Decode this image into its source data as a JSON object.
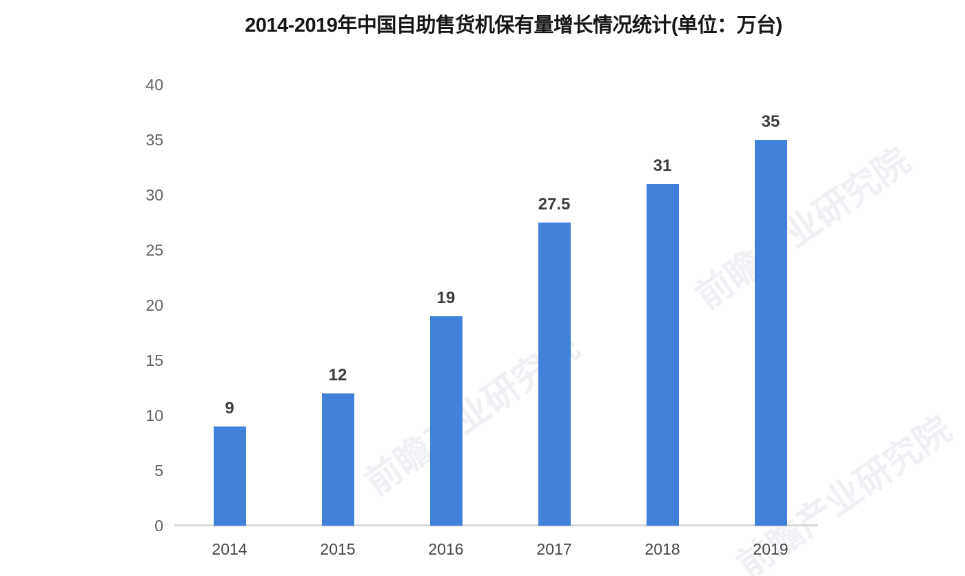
{
  "chart_data": {
    "type": "bar",
    "title": "2014-2019年中国自助售货机保有量增长情况统计(单位：万台)",
    "categories": [
      "2014",
      "2015",
      "2016",
      "2017",
      "2018",
      "2019"
    ],
    "values": [
      9,
      12,
      19,
      27.5,
      31,
      35
    ],
    "value_labels": [
      "9",
      "12",
      "19",
      "27.5",
      "31",
      "35"
    ],
    "y_ticks": [
      0,
      5,
      10,
      15,
      20,
      25,
      30,
      35,
      40
    ],
    "ylim": [
      0,
      40
    ],
    "xlabel": "",
    "ylabel": "",
    "unit": "万台",
    "grid": false,
    "legend": null,
    "bar_color": "#4181d9",
    "axis_color": "#d9d9d9",
    "tick_color": "#616161",
    "value_label_color": "#3d3d3d",
    "title_color": "#161616"
  },
  "watermark": {
    "text": "前瞻产业研究院"
  }
}
